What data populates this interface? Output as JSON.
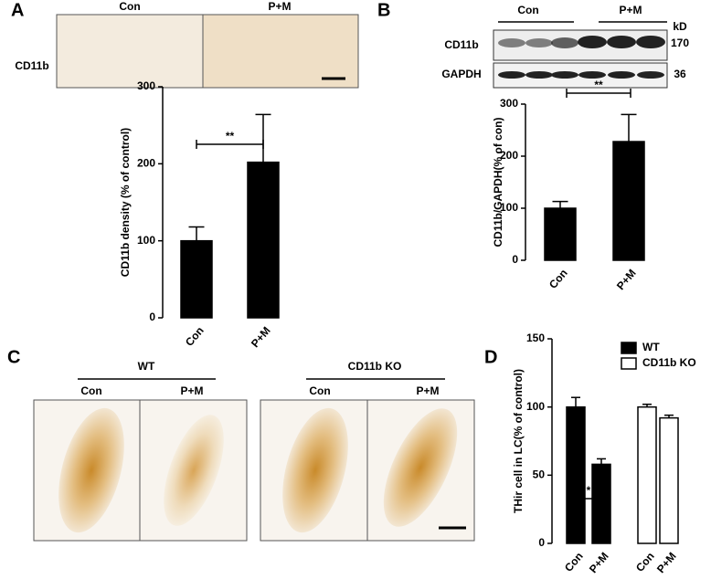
{
  "panel_labels": [
    "A",
    "B",
    "C",
    "D"
  ],
  "panel_a": {
    "image_row_label": "CD11b",
    "image_columns": [
      "Con",
      "P+M"
    ]
  },
  "panel_b": {
    "blot_unit": "kD",
    "blot_rows": [
      {
        "label": "CD11b",
        "size": 170
      },
      {
        "label": "GAPDH",
        "size": 36
      }
    ],
    "blot_groups": [
      "Con",
      "P+M"
    ]
  },
  "panel_c": {
    "groups": [
      {
        "name": "WT",
        "columns": [
          "Con",
          "P+M"
        ]
      },
      {
        "name": "CD11b KO",
        "columns": [
          "Con",
          "P+M"
        ]
      }
    ]
  },
  "chart_data": [
    {
      "type": "bar",
      "y_label": "CD11b density (% of control)",
      "categories": [
        "Con",
        "P+M"
      ],
      "values": [
        100,
        202
      ],
      "errors": [
        18,
        62
      ],
      "color": "#000000",
      "ylim": [
        0,
        300
      ],
      "yticks": [
        0,
        100,
        200,
        300
      ],
      "significance": "**"
    },
    {
      "type": "bar",
      "y_label": "CD11b/GAPDH(% of con)",
      "categories": [
        "Con",
        "P+M"
      ],
      "values": [
        100,
        228
      ],
      "errors": [
        13,
        52
      ],
      "color": "#000000",
      "ylim": [
        0,
        300
      ],
      "yticks": [
        0,
        100,
        200,
        300
      ],
      "significance": "**"
    },
    {
      "type": "grouped_bar",
      "y_label": "THir cell in LC(% of control)",
      "categories": [
        "Con",
        "P+M",
        "Con",
        "P+M"
      ],
      "series": [
        {
          "name": "WT",
          "color": "#000000",
          "values": [
            100,
            58,
            null,
            null
          ],
          "errors": [
            7,
            4,
            null,
            null
          ]
        },
        {
          "name": "CD11b KO",
          "color": "#ffffff",
          "values": [
            null,
            null,
            100,
            92
          ],
          "errors": [
            null,
            null,
            2,
            2
          ]
        }
      ],
      "ylim": [
        0,
        150
      ],
      "yticks": [
        0,
        50,
        100,
        150
      ],
      "significance": "*"
    }
  ]
}
